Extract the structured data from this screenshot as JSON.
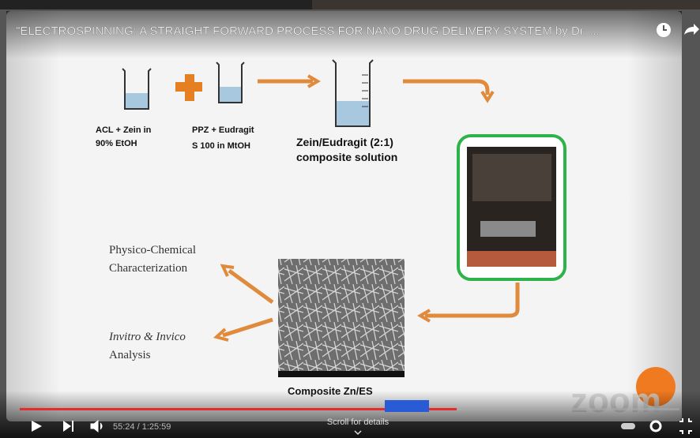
{
  "video": {
    "title": "\"ELECTROSPINNING: A STRAIGHT FORWARD PROCESS FOR NANO DRUG DELIVERY SYSTEM by Dr. ...",
    "slide": {
      "labels": [
        {
          "lines": [
            "ACL + Zein in",
            "90% EtOH"
          ]
        },
        {
          "lines": [
            "PPZ + Eudragit",
            "S 100 in MtOH"
          ]
        },
        {
          "lines": [
            "Zein/Eudragit (2:1)",
            "composite solution"
          ]
        },
        {
          "lines": [
            "Physico-Chemical",
            "Characterization"
          ]
        },
        {
          "lines": [
            "Invitro & Invico",
            "Analysis"
          ]
        },
        {
          "lines": [
            "Composite Zn/ES"
          ]
        }
      ],
      "watermark": "zoom"
    },
    "controls": {
      "time": "55:24 / 1:25:59",
      "scroll_hint": "Scroll for details"
    }
  }
}
